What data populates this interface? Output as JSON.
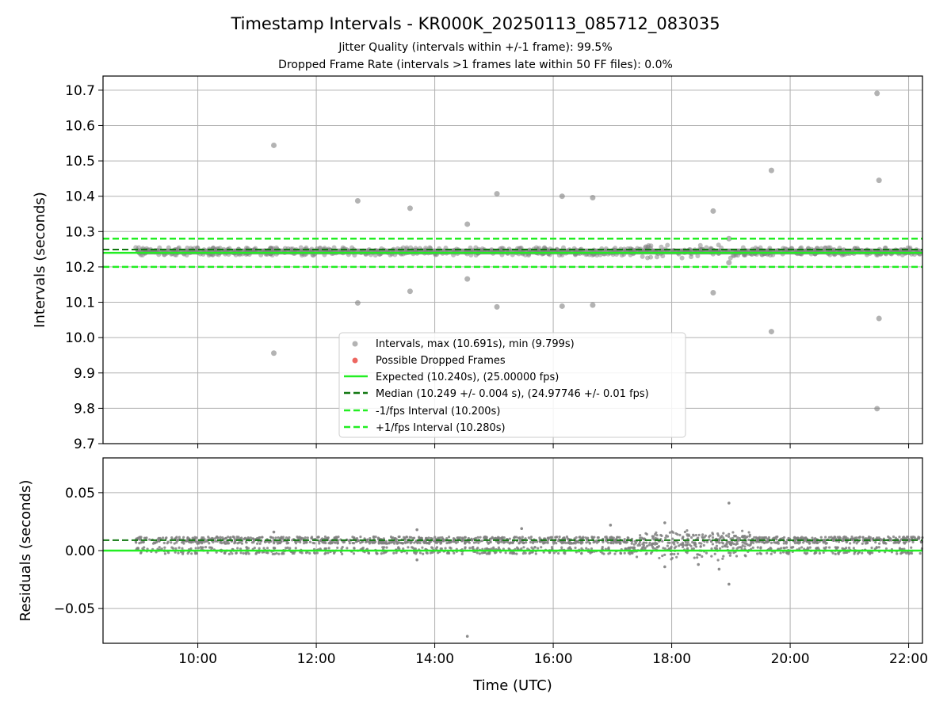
{
  "title": "Timestamp Intervals - KR000K_20250113_085712_083035",
  "subtitle_lines": [
    "Jitter Quality (intervals within +/-1 frame): 99.5%",
    "Dropped Frame Rate (intervals >1 frames late within 50 FF files): 0.0%"
  ],
  "colors": {
    "points": "#808080",
    "dropped": "#e8413a",
    "expected": "#22ee22",
    "median": "#117711",
    "bounds": "#22ee22",
    "grid": "#b0b0b0"
  },
  "chart_data": [
    {
      "type": "scatter",
      "ylabel": "Intervals (seconds)",
      "xlim": [
        "08:24",
        "22:14"
      ],
      "ylim": [
        9.7,
        10.74
      ],
      "x_ticks": [
        "10:00",
        "12:00",
        "14:00",
        "16:00",
        "18:00",
        "20:00",
        "22:00"
      ],
      "y_ticks": [
        "9.7",
        "9.8",
        "9.9",
        "10.0",
        "10.1",
        "10.2",
        "10.3",
        "10.4",
        "10.5",
        "10.6",
        "10.7"
      ],
      "grid": true,
      "legend_position": "lower-center",
      "legend": [
        "Intervals, max (10.691s), min (9.799s)",
        "Possible Dropped Frames",
        "Expected (10.240s), (25.00000 fps)",
        "Median (10.249 +/- 0.004 s), (24.97746 +/- 0.01 fps)",
        "-1/fps Interval (10.200s)",
        "+1/fps Interval (10.280s)"
      ],
      "reference_lines": {
        "expected": 10.24,
        "median": 10.249,
        "minus_one_frame": 10.2,
        "plus_one_frame": 10.28
      },
      "dense_band": {
        "x_start": "08:57",
        "x_end": "22:14",
        "y_low": 10.235,
        "y_high": 10.252
      },
      "outliers": [
        {
          "x": "11:17",
          "y": 10.544
        },
        {
          "x": "11:17",
          "y": 9.956
        },
        {
          "x": "12:42",
          "y": 10.387
        },
        {
          "x": "12:42",
          "y": 10.098
        },
        {
          "x": "13:35",
          "y": 10.366
        },
        {
          "x": "13:35",
          "y": 10.131
        },
        {
          "x": "14:33",
          "y": 10.321
        },
        {
          "x": "14:33",
          "y": 10.166
        },
        {
          "x": "15:03",
          "y": 10.407
        },
        {
          "x": "15:03",
          "y": 10.087
        },
        {
          "x": "16:09",
          "y": 10.4
        },
        {
          "x": "16:09",
          "y": 10.089
        },
        {
          "x": "16:40",
          "y": 10.396
        },
        {
          "x": "16:40",
          "y": 10.092
        },
        {
          "x": "18:42",
          "y": 10.358
        },
        {
          "x": "18:42",
          "y": 10.127
        },
        {
          "x": "18:58",
          "y": 10.28
        },
        {
          "x": "18:58",
          "y": 10.212
        },
        {
          "x": "19:41",
          "y": 10.473
        },
        {
          "x": "19:41",
          "y": 10.017
        },
        {
          "x": "21:28",
          "y": 10.691
        },
        {
          "x": "21:28",
          "y": 9.799
        },
        {
          "x": "21:30",
          "y": 10.445
        },
        {
          "x": "21:30",
          "y": 10.054
        }
      ]
    },
    {
      "type": "scatter",
      "xlabel": "Time (UTC)",
      "ylabel": "Residuals (seconds)",
      "xlim": [
        "08:24",
        "22:14"
      ],
      "ylim": [
        -0.08,
        0.08
      ],
      "x_ticks": [
        "10:00",
        "12:00",
        "14:00",
        "16:00",
        "18:00",
        "20:00",
        "22:00"
      ],
      "y_ticks": [
        "−0.05",
        "0.00",
        "0.05"
      ],
      "y_tick_values": [
        -0.05,
        0,
        0.05
      ],
      "grid": true,
      "reference_lines": {
        "expected": 0.0,
        "median": 0.009
      },
      "bands": [
        {
          "y_center": 0.009,
          "spread": 0.003
        },
        {
          "y_center": 0.0,
          "spread": 0.003
        }
      ],
      "outliers": [
        {
          "x": "14:33",
          "y": -0.074
        },
        {
          "x": "18:58",
          "y": 0.041
        },
        {
          "x": "18:58",
          "y": -0.029
        },
        {
          "x": "16:58",
          "y": 0.022
        },
        {
          "x": "17:53",
          "y": 0.024
        },
        {
          "x": "17:53",
          "y": -0.014
        },
        {
          "x": "18:27",
          "y": -0.012
        },
        {
          "x": "18:48",
          "y": -0.016
        },
        {
          "x": "13:42",
          "y": 0.018
        },
        {
          "x": "13:42",
          "y": -0.008
        },
        {
          "x": "15:28",
          "y": 0.019
        },
        {
          "x": "11:17",
          "y": 0.016
        }
      ]
    }
  ]
}
